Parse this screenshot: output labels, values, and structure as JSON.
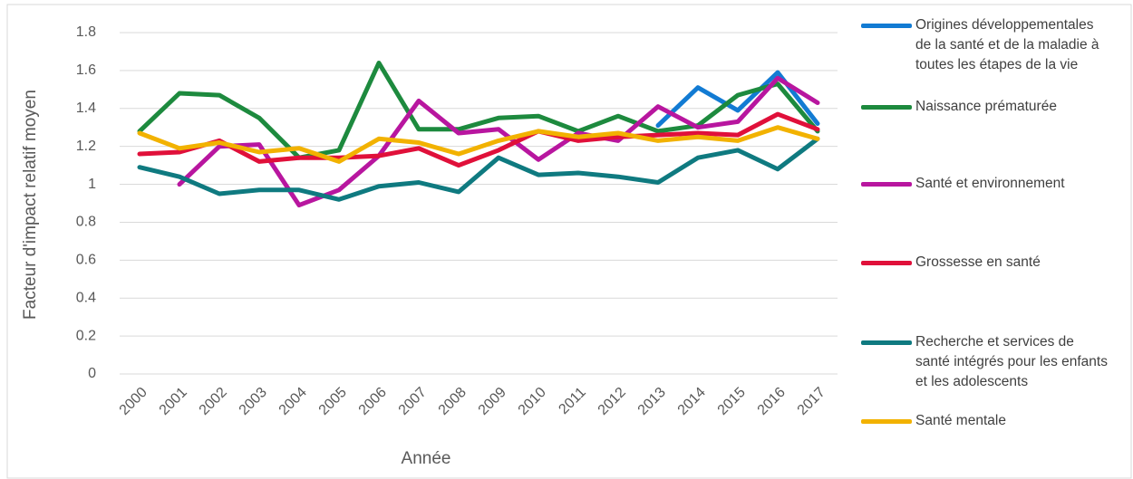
{
  "chart_data": {
    "type": "line",
    "x_label": "Année",
    "y_label": "Facteur d'impact relatif moyen",
    "categories": [
      "2000",
      "2001",
      "2002",
      "2003",
      "2004",
      "2005",
      "2006",
      "2007",
      "2008",
      "2009",
      "2010",
      "2011",
      "2012",
      "2013",
      "2014",
      "2015",
      "2016",
      "2017"
    ],
    "ylim": [
      0,
      1.8
    ],
    "yticks": [
      0,
      0.2,
      0.4,
      0.6,
      0.8,
      1,
      1.2,
      1.4,
      1.6,
      1.8
    ],
    "grid": true,
    "legend": "right",
    "series": [
      {
        "name": "Origines développementales de la santé et de la maladie à toutes les étapes de la vie",
        "color": "#127bd3",
        "values": [
          null,
          null,
          null,
          null,
          null,
          null,
          null,
          null,
          null,
          null,
          null,
          null,
          null,
          1.31,
          1.51,
          1.39,
          1.59,
          1.32
        ]
      },
      {
        "name": "Naissance prématurée",
        "color": "#1d8a3e",
        "values": [
          1.28,
          1.48,
          1.47,
          1.35,
          1.14,
          1.18,
          1.64,
          1.29,
          1.29,
          1.35,
          1.36,
          1.28,
          1.36,
          1.28,
          1.31,
          1.47,
          1.53,
          1.28
        ]
      },
      {
        "name": "Santé et environnement",
        "color": "#b8169f",
        "values": [
          null,
          1.0,
          1.2,
          1.21,
          0.89,
          0.97,
          1.15,
          1.44,
          1.27,
          1.29,
          1.13,
          1.27,
          1.23,
          1.41,
          1.3,
          1.33,
          1.56,
          1.43
        ]
      },
      {
        "name": "Grossesse en santé",
        "color": "#e0103a",
        "values": [
          1.16,
          1.17,
          1.23,
          1.12,
          1.14,
          1.14,
          1.15,
          1.19,
          1.1,
          1.18,
          1.28,
          1.23,
          1.25,
          1.26,
          1.27,
          1.26,
          1.37,
          1.29
        ]
      },
      {
        "name": "Recherche et services de santé intégrés pour les enfants et les adolescents",
        "color": "#0f7a80",
        "values": [
          1.09,
          1.04,
          0.95,
          0.97,
          0.97,
          0.92,
          0.99,
          1.01,
          0.96,
          1.14,
          1.05,
          1.06,
          1.04,
          1.01,
          1.14,
          1.18,
          1.08,
          1.24
        ]
      },
      {
        "name": "Santé mentale",
        "color": "#f2b200",
        "values": [
          1.27,
          1.19,
          1.22,
          1.17,
          1.19,
          1.12,
          1.24,
          1.22,
          1.16,
          1.23,
          1.28,
          1.25,
          1.27,
          1.23,
          1.25,
          1.23,
          1.3,
          1.24
        ]
      }
    ]
  }
}
